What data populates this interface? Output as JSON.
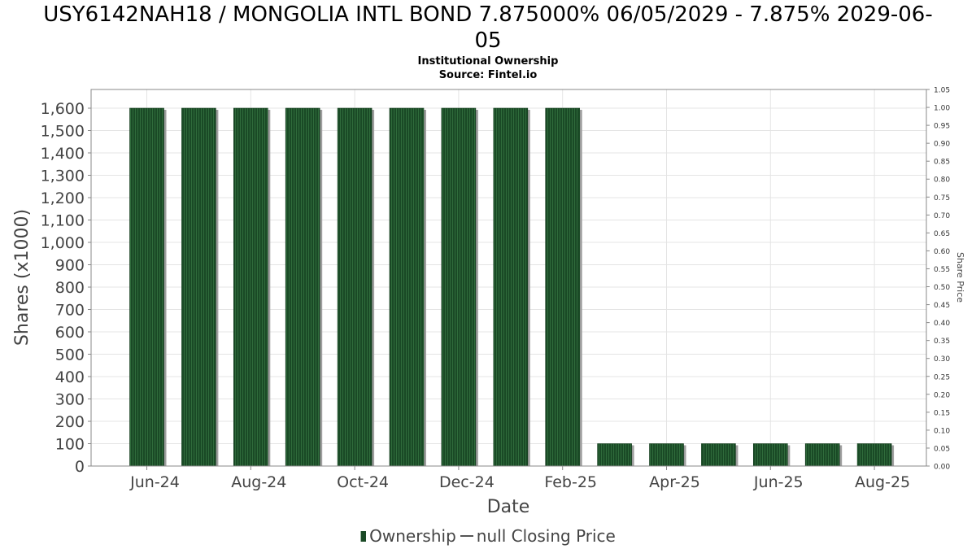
{
  "title_line1": "USY6142NAH18 / MONGOLIA INTL BOND 7.875000% 06/05/2029 - 7.875% 2029-06-",
  "title_line2": "05",
  "subtitle": "Institutional Ownership",
  "source": "Source: Fintel.io",
  "legend": {
    "ownership": "Ownership",
    "price": "null Closing Price"
  },
  "colors": {
    "bar": "#1a4a26",
    "bar_stripe": "#2f6b3b",
    "bar_shadow": "#9e9e9e",
    "grid": "#e4e4e4",
    "axis_text": "#444444"
  },
  "chart_data": {
    "type": "bar",
    "title": "USY6142NAH18 / MONGOLIA INTL BOND 7.875000% 06/05/2029 - 7.875% 2029-06-05",
    "xlabel": "Date",
    "ylabel": "Shares (x1000)",
    "y2label": "Share Price",
    "categories": [
      "Jun-24",
      "Jul-24",
      "Aug-24",
      "Sep-24",
      "Oct-24",
      "Nov-24",
      "Dec-24",
      "Jan-25",
      "Feb-25",
      "Mar-25",
      "Apr-25",
      "May-25",
      "Jun-25",
      "Jul-25",
      "Aug-25"
    ],
    "x_tick_labels": [
      "Jun-24",
      "Aug-24",
      "Oct-24",
      "Dec-24",
      "Feb-25",
      "Apr-25",
      "Jun-25",
      "Aug-25"
    ],
    "series": [
      {
        "name": "Ownership",
        "values": [
          1600,
          1600,
          1600,
          1600,
          1600,
          1600,
          1600,
          1600,
          1600,
          100,
          100,
          100,
          100,
          100,
          100
        ]
      }
    ],
    "ylim": [
      0,
      1680
    ],
    "y_ticks": [
      0,
      100,
      200,
      300,
      400,
      500,
      600,
      700,
      800,
      900,
      1000,
      1100,
      1200,
      1300,
      1400,
      1500,
      1600
    ],
    "y_tick_labels": [
      "0",
      "100",
      "200",
      "300",
      "400",
      "500",
      "600",
      "700",
      "800",
      "900",
      "1,000",
      "1,100",
      "1,200",
      "1,300",
      "1,400",
      "1,500",
      "1,600"
    ],
    "y2lim": [
      0,
      1.05
    ],
    "y2_ticks": [
      0,
      0.05,
      0.1,
      0.15,
      0.2,
      0.25,
      0.3,
      0.35,
      0.4,
      0.45,
      0.5,
      0.55,
      0.6,
      0.65,
      0.7,
      0.75,
      0.8,
      0.85,
      0.9,
      0.95,
      1.0,
      1.05
    ],
    "y2_tick_labels": [
      "0.00",
      "0.05",
      "0.10",
      "0.15",
      "0.20",
      "0.25",
      "0.30",
      "0.35",
      "0.40",
      "0.45",
      "0.50",
      "0.55",
      "0.60",
      "0.65",
      "0.70",
      "0.75",
      "0.80",
      "0.85",
      "0.90",
      "0.95",
      "1.00",
      "1.05"
    ],
    "grid": true,
    "legend_position": "bottom"
  }
}
